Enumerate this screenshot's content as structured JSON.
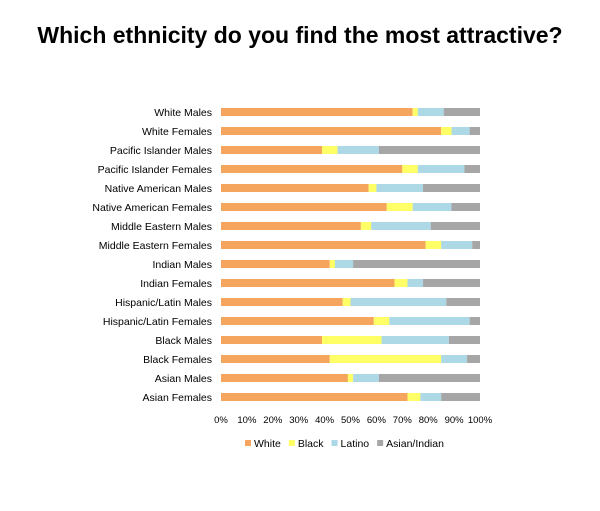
{
  "chart_data": {
    "type": "bar",
    "orientation": "horizontal",
    "stacked": true,
    "percent_stacked": true,
    "title": "Which ethnicity do you find the most attractive?",
    "categories": [
      "White Males",
      "White Females",
      "Pacific Islander Males",
      "Pacific Islander Females",
      "Native American Males",
      "Native American Females",
      "Middle Eastern Males",
      "Middle Eastern Females",
      "Indian Males",
      "Indian Females",
      "Hispanic/Latin Males",
      "Hispanic/Latin Females",
      "Black Males",
      "Black Females",
      "Asian Males",
      "Asian Females"
    ],
    "series": [
      {
        "name": "White",
        "color": "#F6A55E",
        "values": [
          74,
          85,
          39,
          70,
          57,
          64,
          54,
          79,
          42,
          67,
          47,
          59,
          39,
          42,
          49,
          72
        ]
      },
      {
        "name": "Black",
        "color": "#FFFF66",
        "values": [
          2,
          4,
          6,
          6,
          3,
          10,
          4,
          6,
          2,
          5,
          3,
          6,
          23,
          43,
          2,
          5
        ]
      },
      {
        "name": "Latino",
        "color": "#ADD8E6",
        "values": [
          10,
          7,
          16,
          18,
          18,
          15,
          23,
          12,
          7,
          6,
          37,
          31,
          26,
          10,
          10,
          8
        ]
      },
      {
        "name": "Asian/Indian",
        "color": "#A6A6A6",
        "values": [
          14,
          4,
          39,
          6,
          22,
          11,
          19,
          3,
          49,
          22,
          13,
          4,
          12,
          5,
          39,
          15
        ]
      }
    ],
    "x_ticks": [
      "0%",
      "10%",
      "20%",
      "30%",
      "40%",
      "50%",
      "60%",
      "70%",
      "80%",
      "90%",
      "100%"
    ],
    "xlim": [
      0,
      100
    ],
    "grid": false,
    "legend_position": "bottom"
  }
}
